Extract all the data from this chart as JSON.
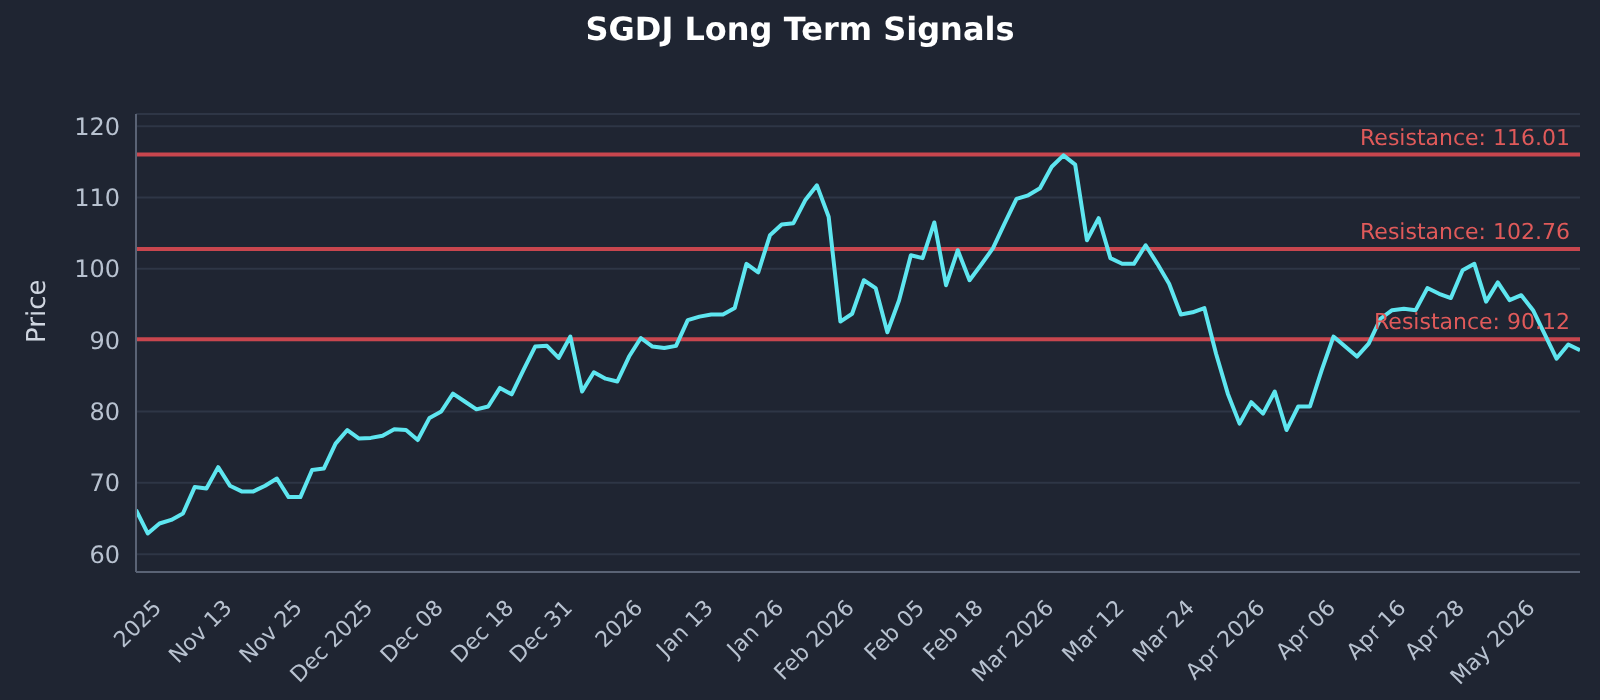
{
  "chart_data": {
    "type": "line",
    "title": "SGDJ Long Term Signals",
    "ylabel": "Price",
    "categories": [
      null,
      null,
      "2025",
      null,
      null,
      null,
      null,
      null,
      "Nov 13",
      null,
      null,
      null,
      null,
      null,
      "Nov 25",
      null,
      null,
      null,
      null,
      null,
      "Dec 2025",
      null,
      null,
      null,
      null,
      null,
      "Dec 08",
      null,
      null,
      null,
      null,
      null,
      "Dec 18",
      null,
      null,
      null,
      null,
      "Dec 31",
      null,
      null,
      null,
      null,
      null,
      "2026",
      null,
      null,
      null,
      null,
      null,
      "Jan 13",
      null,
      null,
      null,
      null,
      null,
      "Jan 26",
      null,
      null,
      null,
      null,
      null,
      "Feb 2026",
      null,
      null,
      null,
      null,
      null,
      "Feb 05",
      null,
      null,
      null,
      null,
      "Feb 18",
      null,
      null,
      null,
      null,
      null,
      "Mar 2026",
      null,
      null,
      null,
      null,
      null,
      "Mar 12",
      null,
      null,
      null,
      null,
      null,
      "Mar 24",
      null,
      null,
      null,
      null,
      null,
      "Apr 2026",
      null,
      null,
      null,
      null,
      null,
      "Apr 06",
      null,
      null,
      null,
      null,
      null,
      "Apr 16",
      null,
      null,
      null,
      null,
      "Apr 28",
      null,
      null,
      null,
      null,
      null,
      "May 2026",
      null,
      null,
      null,
      null
    ],
    "series": [
      {
        "color": "#5ee6f0",
        "values": [
          66.2,
          62.9,
          64.3,
          64.8,
          65.7,
          69.4,
          69.2,
          72.2,
          69.6,
          68.8,
          68.8,
          69.6,
          70.6,
          68.0,
          68.0,
          71.8,
          72.0,
          75.5,
          77.4,
          76.2,
          76.3,
          76.6,
          77.5,
          77.4,
          76.0,
          79.1,
          80.0,
          82.5,
          81.4,
          80.3,
          80.7,
          83.3,
          82.4,
          85.8,
          89.1,
          89.2,
          87.5,
          90.5,
          82.8,
          85.5,
          84.6,
          84.2,
          87.7,
          90.3,
          89.1,
          88.9,
          89.2,
          92.8,
          93.3,
          93.6,
          93.6,
          94.5,
          100.7,
          99.5,
          104.7,
          106.2,
          106.4,
          109.6,
          111.7,
          107.3,
          92.6,
          93.7,
          98.4,
          97.3,
          91.1,
          95.6,
          101.9,
          101.5,
          106.5,
          97.7,
          102.6,
          98.4,
          100.6,
          102.9,
          106.4,
          109.8,
          110.3,
          111.3,
          114.3,
          115.9,
          114.6,
          104.0,
          107.1,
          101.5,
          100.7,
          100.7,
          103.3,
          100.7,
          97.9,
          93.6,
          93.9,
          94.5,
          88.1,
          82.5,
          78.3,
          81.3,
          79.7,
          82.8,
          77.4,
          80.7,
          80.7,
          85.8,
          90.5,
          89.1,
          87.7,
          89.5,
          93.0,
          94.2,
          94.4,
          94.2,
          97.3,
          96.5,
          95.9,
          99.8,
          100.7,
          95.4,
          98.1,
          95.6,
          96.3,
          94.2,
          90.8,
          87.4,
          89.4,
          88.6
        ]
      }
    ],
    "ylim": [
      57.5,
      121.7
    ],
    "yticks": [
      60,
      70,
      80,
      90,
      100,
      110,
      120
    ],
    "grid": "y",
    "legend": false,
    "marker": "none",
    "line_style": "solid",
    "ref_lines": [
      {
        "axis": "y",
        "value": 116.01,
        "label": "Resistance: 116.01",
        "color": "#c8464e"
      },
      {
        "axis": "y",
        "value": 102.76,
        "label": "Resistance: 102.76",
        "color": "#c8464e"
      },
      {
        "axis": "y",
        "value": 90.12,
        "label": "Resistance: 90.12",
        "color": "#c8464e"
      }
    ]
  }
}
